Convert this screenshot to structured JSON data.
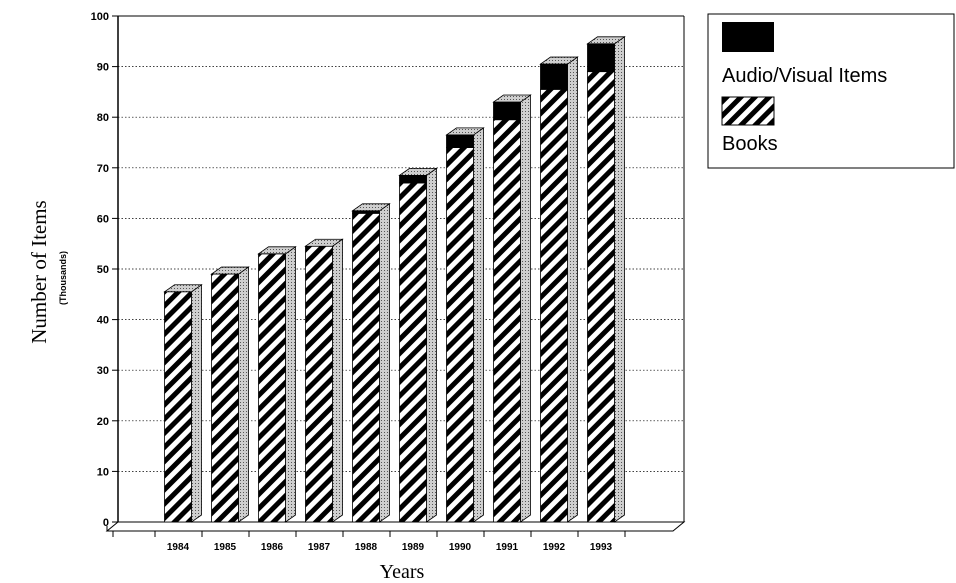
{
  "chart_data": {
    "type": "bar",
    "stacked": true,
    "three_d": true,
    "categories": [
      "1984",
      "1985",
      "1986",
      "1987",
      "1988",
      "1989",
      "1990",
      "1991",
      "1992",
      "1993"
    ],
    "series": [
      {
        "name": "Books",
        "values": [
          45.5,
          49,
          53,
          54.5,
          61,
          67,
          74,
          79.5,
          85.5,
          89
        ],
        "color": "#000000",
        "pattern": "diagonal-hatch"
      },
      {
        "name": "Audio/Visual Items",
        "values": [
          0,
          0,
          0,
          0,
          0.5,
          1.5,
          2.5,
          3.5,
          5,
          5.5
        ],
        "color": "#000000",
        "pattern": "solid"
      }
    ],
    "xlabel": "Years",
    "ylabel": "Number of Items",
    "ylabel_sub": "(Thousands)",
    "ylim": [
      0,
      100
    ],
    "yticks": [
      "0",
      "10",
      "20",
      "30",
      "40",
      "50",
      "60",
      "70",
      "80",
      "90",
      "100"
    ],
    "grid": true,
    "legend_position": "top-right"
  }
}
